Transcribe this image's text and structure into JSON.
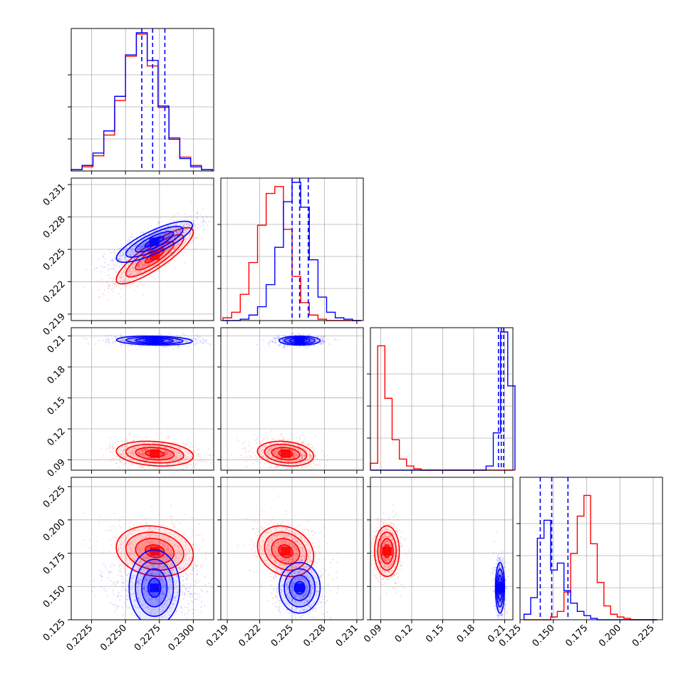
{
  "chart_data": {
    "type": "corner",
    "grid": true,
    "colors": {
      "red": "#ff0000",
      "blue": "#0000ff"
    },
    "series": [
      {
        "color": "#ff0000"
      },
      {
        "color": "#0000ff"
      }
    ],
    "params": [
      {
        "range": [
          0.221,
          0.2315
        ],
        "ticks": [
          0.2225,
          0.225,
          0.2275,
          0.23
        ],
        "tick_labels": [
          "0.2225",
          "0.2250",
          "0.2275",
          "0.2300"
        ]
      },
      {
        "range": [
          0.2184,
          0.2316
        ],
        "ticks": [
          0.219,
          0.222,
          0.225,
          0.228,
          0.231
        ],
        "tick_labels": [
          "0.219",
          "0.222",
          "0.225",
          "0.228",
          "0.231"
        ]
      },
      {
        "range": [
          0.08,
          0.218
        ],
        "ticks": [
          0.09,
          0.12,
          0.15,
          0.18,
          0.21
        ],
        "tick_labels": [
          "0.09",
          "0.12",
          "0.15",
          "0.18",
          "0.21"
        ]
      },
      {
        "range": [
          0.125,
          0.232
        ],
        "ticks": [
          0.125,
          0.15,
          0.175,
          0.2,
          0.225
        ],
        "tick_labels": [
          "0.125",
          "0.150",
          "0.175",
          "0.200",
          "0.225"
        ]
      }
    ],
    "histograms": [
      {
        "edges": [
          0.221,
          0.2218,
          0.2226,
          0.2234,
          0.2242,
          0.225,
          0.2258,
          0.2266,
          0.2274,
          0.2282,
          0.229,
          0.2298,
          0.2306,
          0.2314
        ],
        "red": [
          0.01,
          0.03,
          0.11,
          0.26,
          0.51,
          0.83,
          0.99,
          0.76,
          0.46,
          0.24,
          0.1,
          0.04,
          0.01
        ],
        "blue": [
          0.01,
          0.04,
          0.13,
          0.29,
          0.54,
          0.84,
          1.0,
          0.8,
          0.47,
          0.23,
          0.09,
          0.03,
          0.01
        ],
        "quantiles_blue": [
          0.2262,
          0.227,
          0.2279
        ]
      },
      {
        "edges": [
          0.2186,
          0.2194,
          0.2202,
          0.221,
          0.2218,
          0.2226,
          0.2234,
          0.2242,
          0.225,
          0.2258,
          0.2266,
          0.2274,
          0.2282,
          0.229,
          0.2298,
          0.2306,
          0.2314
        ],
        "red": [
          0.02,
          0.06,
          0.19,
          0.42,
          0.69,
          0.92,
          0.97,
          0.66,
          0.32,
          0.13,
          0.04,
          0.01,
          0.0,
          0.0,
          0.0,
          0.0
        ],
        "blue": [
          0.0,
          0.0,
          0.01,
          0.04,
          0.1,
          0.26,
          0.53,
          0.86,
          1.0,
          0.82,
          0.44,
          0.17,
          0.06,
          0.02,
          0.01,
          0.0
        ],
        "quantiles_blue": [
          0.225,
          0.2257,
          0.2265
        ]
      },
      {
        "edges": [
          0.08,
          0.087,
          0.094,
          0.101,
          0.108,
          0.115,
          0.122,
          0.129,
          0.136,
          0.143,
          0.15,
          0.157,
          0.164,
          0.171,
          0.178,
          0.185,
          0.192,
          0.199,
          0.206,
          0.213,
          0.22
        ],
        "red": [
          0.05,
          0.9,
          0.52,
          0.22,
          0.08,
          0.03,
          0.01,
          0.0,
          0.0,
          0.0,
          0.0,
          0.0,
          0.0,
          0.0,
          0.0,
          0.0,
          0.0,
          0.0,
          0.0,
          0.0
        ],
        "blue": [
          0.0,
          0.0,
          0.0,
          0.0,
          0.0,
          0.0,
          0.0,
          0.0,
          0.0,
          0.0,
          0.0,
          0.0,
          0.0,
          0.0,
          0.0,
          0.0,
          0.03,
          0.27,
          1.0,
          0.61
        ],
        "quantiles_blue": [
          0.204,
          0.2067,
          0.209
        ]
      },
      {
        "edges": [
          0.128,
          0.133,
          0.138,
          0.143,
          0.148,
          0.153,
          0.158,
          0.163,
          0.168,
          0.173,
          0.178,
          0.183,
          0.188,
          0.193,
          0.198,
          0.203,
          0.208,
          0.213,
          0.218,
          0.223,
          0.228
        ],
        "red": [
          0.0,
          0.0,
          0.0,
          0.0,
          0.02,
          0.06,
          0.2,
          0.48,
          0.75,
          0.9,
          0.55,
          0.27,
          0.1,
          0.04,
          0.02,
          0.01,
          0.0,
          0.0,
          0.0,
          0.0
        ],
        "blue": [
          0.04,
          0.16,
          0.59,
          0.72,
          0.36,
          0.41,
          0.21,
          0.12,
          0.06,
          0.03,
          0.01,
          0.0,
          0.0,
          0.0,
          0.0,
          0.0,
          0.0,
          0.0,
          0.0,
          0.0
        ],
        "quantiles_blue": [
          0.1402,
          0.1488,
          0.161
        ]
      }
    ],
    "populations": {
      "red": {
        "mean": [
          0.22716,
          0.2244,
          0.096,
          0.1765
        ],
        "sd": [
          0.00142,
          0.0013,
          0.006,
          0.0095
        ],
        "cov": {
          "0-1": 0.85,
          "0-2": -0.2,
          "0-3": -0.15,
          "1-2": -0.2,
          "1-3": -0.2,
          "2-3": 0.0
        }
      },
      "blue": {
        "mean": [
          0.22713,
          0.2257,
          0.2055,
          0.149
        ],
        "sd": [
          0.0014,
          0.00095,
          0.0022,
          0.0095
        ],
        "cov": {
          "0-1": 0.8,
          "0-2": -0.15,
          "0-3": 0.0,
          "1-2": 0.0,
          "1-3": 0.0,
          "2-3": 0.0
        }
      }
    }
  }
}
